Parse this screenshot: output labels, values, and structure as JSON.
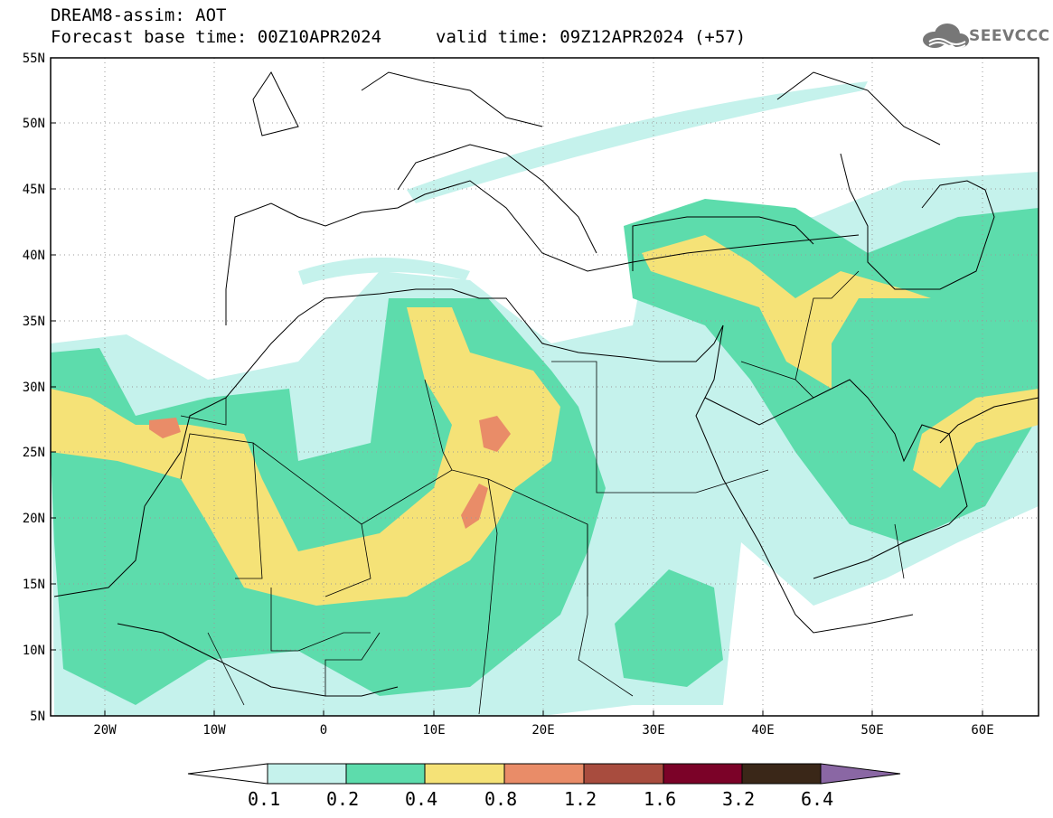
{
  "header": {
    "line1": "DREAM8-assim: AOT",
    "line2": "Forecast base time: 00Z10APR2024",
    "valid": "valid time: 09Z12APR2024 (+57)",
    "logo_text": "SEEVCCC"
  },
  "map": {
    "lat_labels": [
      "55N",
      "50N",
      "45N",
      "40N",
      "35N",
      "30N",
      "25N",
      "20N",
      "15N",
      "10N",
      "5N"
    ],
    "lon_labels": [
      "20W",
      "10W",
      "0",
      "10E",
      "20E",
      "30E",
      "40E",
      "50E",
      "60E"
    ],
    "extent": {
      "lon": [
        -25,
        65
      ],
      "lat": [
        5,
        55
      ]
    }
  },
  "colorbar": {
    "labels": [
      "0.1",
      "0.2",
      "0.4",
      "0.8",
      "1.2",
      "1.6",
      "3.2",
      "6.4"
    ],
    "colors": [
      "#c5f2ec",
      "#5ddcac",
      "#f5e277",
      "#e98c68",
      "#a84c3e",
      "#7b0228",
      "#3a2718",
      "#8a67a4"
    ],
    "below_color": "#ffffff"
  }
}
